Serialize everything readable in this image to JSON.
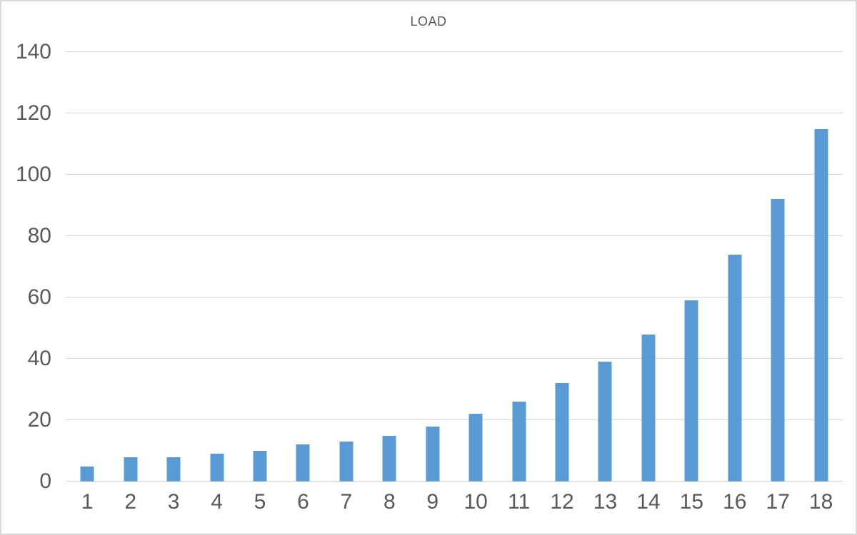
{
  "colors": {
    "bar": "#5b9bd5",
    "grid": "#d9d9d9",
    "axis": "#d1d1d1",
    "text": "#595959",
    "background": "#ffffff",
    "frame_border": "#d9d9d9"
  },
  "chart_data": {
    "type": "bar",
    "title": "LOAD",
    "categories": [
      "1",
      "2",
      "3",
      "4",
      "5",
      "6",
      "7",
      "8",
      "9",
      "10",
      "11",
      "12",
      "13",
      "14",
      "15",
      "16",
      "17",
      "18"
    ],
    "values": [
      5,
      8,
      8,
      9,
      10,
      12,
      13,
      15,
      18,
      22,
      26,
      32,
      39,
      48,
      59,
      74,
      92,
      115
    ],
    "xlabel": "",
    "ylabel": "",
    "ylim": [
      0,
      140
    ],
    "y_ticks": [
      0,
      20,
      40,
      60,
      80,
      100,
      120,
      140
    ],
    "grid": true,
    "legend": false,
    "legend_position": "none"
  }
}
